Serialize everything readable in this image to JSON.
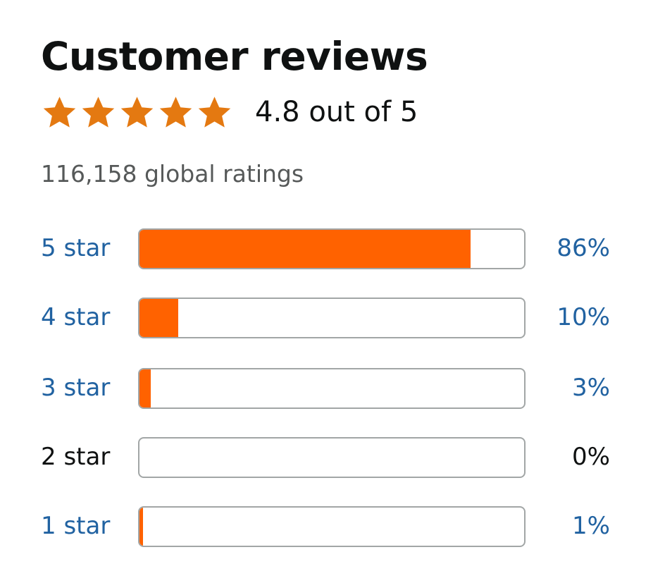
{
  "header": {
    "title": "Customer reviews"
  },
  "rating": {
    "stars": 5,
    "average_text": "4.8 out of 5",
    "star_color": "#e47911"
  },
  "total_ratings": "116,158 global ratings",
  "colors": {
    "bar_fill": "#ff6200",
    "link": "#2162a1"
  },
  "histogram": [
    {
      "label": "5 star",
      "percent_text": "86%",
      "percent": 86,
      "link": true
    },
    {
      "label": "4 star",
      "percent_text": "10%",
      "percent": 10,
      "link": true
    },
    {
      "label": "3 star",
      "percent_text": "3%",
      "percent": 3,
      "link": true
    },
    {
      "label": "2 star",
      "percent_text": "0%",
      "percent": 0,
      "link": false
    },
    {
      "label": "1 star",
      "percent_text": "1%",
      "percent": 1,
      "link": true
    }
  ]
}
